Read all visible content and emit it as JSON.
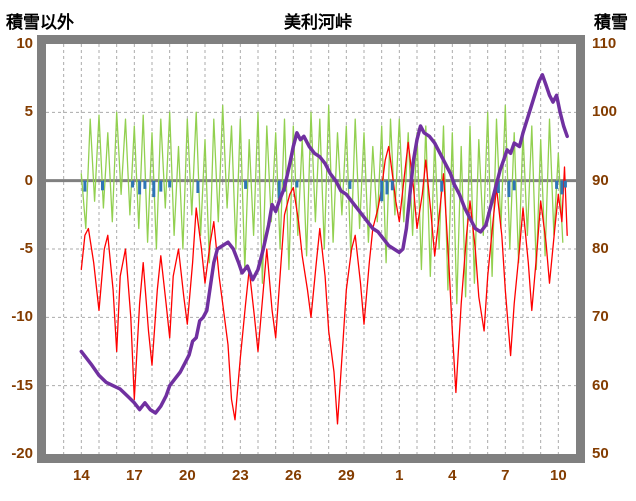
{
  "header": {
    "left_axis_title": "積雪以外",
    "chart_title": "美利河峠",
    "right_axis_title": "積雪"
  },
  "colors": {
    "background": "#FFFFFF",
    "frame": "#808080",
    "grid": "#ABABAB",
    "zero_line": "#808080",
    "axis_label": "#833C00",
    "title_text": "#000000"
  },
  "chart_data": {
    "type": "line",
    "title": "美利河峠",
    "grid": true,
    "legend": "none",
    "left_axis": {
      "title": "積雪以外",
      "range": [
        -20,
        10
      ],
      "ticks": [
        10,
        5,
        0,
        -5,
        -10,
        -15,
        -20
      ]
    },
    "right_axis": {
      "title": "積雪",
      "range": [
        50,
        110
      ],
      "ticks": [
        110,
        100,
        90,
        80,
        70,
        60,
        50
      ]
    },
    "x_axis": {
      "range": [
        0,
        30
      ],
      "gridline_every_day": true,
      "tick_positions": [
        2,
        5,
        8,
        11,
        14,
        17,
        20,
        23,
        26,
        29
      ],
      "tick_labels": [
        "14",
        "17",
        "20",
        "23",
        "26",
        "29",
        "1",
        "4",
        "7",
        "10"
      ]
    },
    "series": [
      {
        "name": "green-high-frequency-series",
        "style": "line",
        "axis": "left",
        "color": "#92D050",
        "width": 1.3,
        "x_start": 2,
        "x_step": 0.25,
        "values": [
          0.5,
          -3.5,
          4.5,
          -1.5,
          4.8,
          -2,
          3.5,
          -3,
          5,
          -1,
          4.5,
          -2.5,
          4,
          -3.5,
          4.8,
          -4.5,
          3.5,
          -5,
          4.5,
          -2,
          5,
          -4,
          2.5,
          -5,
          4.5,
          -2.5,
          5,
          -4,
          3,
          -6,
          4.5,
          -3,
          5.5,
          -2,
          4,
          -5,
          4.5,
          -6.5,
          3,
          -4,
          5,
          -7.5,
          4,
          -3,
          3.5,
          -5,
          4.5,
          -6.5,
          4,
          -4,
          3,
          -5.5,
          5,
          -3,
          4.5,
          -5,
          5.5,
          -4.5,
          3.5,
          -2.5,
          4,
          -5.5,
          4.5,
          -3.5,
          3.5,
          -4.5,
          2.5,
          -3,
          4,
          -6,
          4.5,
          -2.5,
          4.5,
          -3,
          3.5,
          -4,
          3.5,
          -6.5,
          4,
          -7,
          3,
          -5,
          4,
          -8,
          3.5,
          -9,
          2.5,
          -8.5,
          4,
          -7.5,
          3,
          -4,
          5,
          -7,
          4.5,
          -3.5,
          5.5,
          -5,
          3.5,
          -6,
          3.5,
          -4,
          4,
          -6.5,
          3,
          -5.5,
          4.5,
          -4,
          2,
          -4.5
        ]
      },
      {
        "name": "red-temperature-series",
        "style": "line",
        "axis": "left",
        "color": "#FF0000",
        "width": 1.3,
        "points": [
          [
            2,
            -6.5
          ],
          [
            2.2,
            -4
          ],
          [
            2.4,
            -3.5
          ],
          [
            2.7,
            -6
          ],
          [
            3,
            -9.5
          ],
          [
            3.3,
            -5
          ],
          [
            3.5,
            -4
          ],
          [
            3.8,
            -8
          ],
          [
            4,
            -12.5
          ],
          [
            4.2,
            -7
          ],
          [
            4.5,
            -5
          ],
          [
            4.8,
            -10
          ],
          [
            5,
            -16
          ],
          [
            5.3,
            -9
          ],
          [
            5.5,
            -6
          ],
          [
            5.8,
            -11
          ],
          [
            6,
            -13.5
          ],
          [
            6.3,
            -8
          ],
          [
            6.5,
            -5.5
          ],
          [
            6.8,
            -9
          ],
          [
            7,
            -11.5
          ],
          [
            7.2,
            -7
          ],
          [
            7.5,
            -5
          ],
          [
            7.8,
            -8.5
          ],
          [
            8,
            -10.5
          ],
          [
            8.3,
            -6
          ],
          [
            8.5,
            -2
          ],
          [
            8.8,
            -5
          ],
          [
            9,
            -7.5
          ],
          [
            9.3,
            -4.5
          ],
          [
            9.5,
            -3
          ],
          [
            9.8,
            -7
          ],
          [
            10,
            -9
          ],
          [
            10.3,
            -12
          ],
          [
            10.5,
            -16
          ],
          [
            10.7,
            -17.5
          ],
          [
            11,
            -13
          ],
          [
            11.3,
            -9
          ],
          [
            11.5,
            -6.5
          ],
          [
            11.8,
            -10
          ],
          [
            12,
            -12.5
          ],
          [
            12.3,
            -8
          ],
          [
            12.5,
            -5
          ],
          [
            12.8,
            -9.5
          ],
          [
            13,
            -11.5
          ],
          [
            13.3,
            -6
          ],
          [
            13.5,
            -2.5
          ],
          [
            13.8,
            -1
          ],
          [
            14,
            -0.5
          ],
          [
            14.3,
            -3
          ],
          [
            14.5,
            -5.5
          ],
          [
            14.8,
            -8
          ],
          [
            15,
            -10
          ],
          [
            15.3,
            -6
          ],
          [
            15.5,
            -3.5
          ],
          [
            15.8,
            -7
          ],
          [
            16,
            -11
          ],
          [
            16.3,
            -14
          ],
          [
            16.5,
            -17.8
          ],
          [
            16.8,
            -12
          ],
          [
            17,
            -8
          ],
          [
            17.3,
            -5
          ],
          [
            17.5,
            -4
          ],
          [
            17.8,
            -7.5
          ],
          [
            18,
            -10.5
          ],
          [
            18.3,
            -6
          ],
          [
            18.5,
            -3.5
          ],
          [
            18.8,
            -2
          ],
          [
            19,
            -0.5
          ],
          [
            19.2,
            1.5
          ],
          [
            19.4,
            2.5
          ],
          [
            19.6,
            0.5
          ],
          [
            19.8,
            -1.5
          ],
          [
            20,
            -3
          ],
          [
            20.3,
            0.5
          ],
          [
            20.5,
            2.8
          ],
          [
            20.8,
            -0.5
          ],
          [
            21,
            -3.5
          ],
          [
            21.3,
            -1
          ],
          [
            21.5,
            1.5
          ],
          [
            21.8,
            -2.5
          ],
          [
            22,
            -5.5
          ],
          [
            22.3,
            -2
          ],
          [
            22.5,
            0.5
          ],
          [
            22.8,
            -6
          ],
          [
            23,
            -11
          ],
          [
            23.2,
            -15.5
          ],
          [
            23.5,
            -9
          ],
          [
            23.8,
            -4
          ],
          [
            24,
            -1.5
          ],
          [
            24.3,
            -5
          ],
          [
            24.5,
            -8.5
          ],
          [
            24.8,
            -11
          ],
          [
            25,
            -7
          ],
          [
            25.3,
            -3
          ],
          [
            25.5,
            -0.5
          ],
          [
            25.8,
            -4
          ],
          [
            26,
            -8
          ],
          [
            26.3,
            -12.8
          ],
          [
            26.5,
            -9
          ],
          [
            26.8,
            -5
          ],
          [
            27,
            -2
          ],
          [
            27.3,
            -6
          ],
          [
            27.5,
            -9.5
          ],
          [
            27.8,
            -5
          ],
          [
            28,
            -1.5
          ],
          [
            28.3,
            -4.5
          ],
          [
            28.5,
            -7.5
          ],
          [
            28.8,
            -3.5
          ],
          [
            29,
            -1
          ],
          [
            29.2,
            -3
          ],
          [
            29.35,
            1
          ],
          [
            29.5,
            -4
          ]
        ]
      },
      {
        "name": "blue-bar-series",
        "style": "bar",
        "axis": "left",
        "color": "#2E75B6",
        "points": [
          [
            2.2,
            -0.8
          ],
          [
            3.2,
            -0.7
          ],
          [
            4.9,
            -0.5
          ],
          [
            5.3,
            -1
          ],
          [
            5.6,
            -0.6
          ],
          [
            6.1,
            -1.2
          ],
          [
            6.5,
            -0.8
          ],
          [
            7,
            -0.5
          ],
          [
            8.6,
            -0.9
          ],
          [
            11.3,
            -0.6
          ],
          [
            13.2,
            -1.3
          ],
          [
            13.5,
            -0.8
          ],
          [
            14.2,
            -0.5
          ],
          [
            17.2,
            -0.6
          ],
          [
            19,
            -1.5
          ],
          [
            19.3,
            -1
          ],
          [
            19.6,
            -0.7
          ],
          [
            22.4,
            -0.8
          ],
          [
            23.1,
            -0.5
          ],
          [
            25.6,
            -0.9
          ],
          [
            26.2,
            -1.2
          ],
          [
            26.5,
            -0.7
          ],
          [
            28.9,
            -0.6
          ],
          [
            29.2,
            -1
          ],
          [
            29.4,
            -0.5
          ]
        ]
      },
      {
        "name": "purple-snow-depth-series",
        "style": "line",
        "axis": "right",
        "color": "#7030A0",
        "width": 3.5,
        "points": [
          [
            2,
            65
          ],
          [
            2.3,
            64
          ],
          [
            2.6,
            63
          ],
          [
            3,
            61.5
          ],
          [
            3.4,
            60.5
          ],
          [
            3.8,
            60
          ],
          [
            4.2,
            59.5
          ],
          [
            4.6,
            58.5
          ],
          [
            5,
            57.5
          ],
          [
            5.3,
            56.5
          ],
          [
            5.6,
            57.5
          ],
          [
            5.9,
            56.5
          ],
          [
            6.2,
            56
          ],
          [
            6.5,
            57
          ],
          [
            6.8,
            58.5
          ],
          [
            7,
            60
          ],
          [
            7.3,
            61
          ],
          [
            7.6,
            62
          ],
          [
            7.9,
            63.5
          ],
          [
            8.1,
            64.5
          ],
          [
            8.3,
            66.5
          ],
          [
            8.5,
            67
          ],
          [
            8.7,
            69.5
          ],
          [
            8.9,
            70
          ],
          [
            9.1,
            71
          ],
          [
            9.3,
            74.5
          ],
          [
            9.5,
            78
          ],
          [
            9.7,
            80
          ],
          [
            10,
            80.5
          ],
          [
            10.3,
            81
          ],
          [
            10.6,
            80
          ],
          [
            10.9,
            78
          ],
          [
            11.1,
            76.5
          ],
          [
            11.4,
            77.5
          ],
          [
            11.7,
            75.5
          ],
          [
            12,
            77
          ],
          [
            12.3,
            80
          ],
          [
            12.6,
            83.5
          ],
          [
            12.8,
            86.5
          ],
          [
            13,
            85.5
          ],
          [
            13.2,
            87
          ],
          [
            13.5,
            89
          ],
          [
            13.8,
            92.5
          ],
          [
            14,
            95
          ],
          [
            14.2,
            97
          ],
          [
            14.4,
            96
          ],
          [
            14.6,
            96.5
          ],
          [
            14.9,
            95
          ],
          [
            15.2,
            94
          ],
          [
            15.5,
            93.5
          ],
          [
            15.8,
            92.5
          ],
          [
            16.1,
            91
          ],
          [
            16.4,
            90
          ],
          [
            16.7,
            88.5
          ],
          [
            17,
            88
          ],
          [
            17.3,
            87
          ],
          [
            17.6,
            86
          ],
          [
            17.9,
            85
          ],
          [
            18.2,
            84
          ],
          [
            18.5,
            83
          ],
          [
            18.8,
            82.5
          ],
          [
            19.1,
            81.5
          ],
          [
            19.4,
            80.5
          ],
          [
            19.7,
            80
          ],
          [
            20,
            79.5
          ],
          [
            20.2,
            80
          ],
          [
            20.4,
            83
          ],
          [
            20.6,
            88
          ],
          [
            20.8,
            93
          ],
          [
            21,
            96
          ],
          [
            21.2,
            98
          ],
          [
            21.4,
            97
          ],
          [
            21.7,
            96.5
          ],
          [
            22,
            95.5
          ],
          [
            22.3,
            94
          ],
          [
            22.6,
            92.5
          ],
          [
            22.9,
            91
          ],
          [
            23.1,
            89.5
          ],
          [
            23.4,
            88
          ],
          [
            23.7,
            86
          ],
          [
            24,
            84.5
          ],
          [
            24.3,
            83
          ],
          [
            24.6,
            82.5
          ],
          [
            24.9,
            83.5
          ],
          [
            25.1,
            85.5
          ],
          [
            25.4,
            88.5
          ],
          [
            25.7,
            91.5
          ],
          [
            25.9,
            93
          ],
          [
            26.1,
            94.5
          ],
          [
            26.3,
            94
          ],
          [
            26.5,
            95.5
          ],
          [
            26.8,
            95
          ],
          [
            27,
            97
          ],
          [
            27.3,
            99.5
          ],
          [
            27.6,
            102
          ],
          [
            27.9,
            104.5
          ],
          [
            28.1,
            105.5
          ],
          [
            28.3,
            104
          ],
          [
            28.5,
            102.5
          ],
          [
            28.7,
            101.5
          ],
          [
            28.9,
            102.5
          ],
          [
            29.1,
            100
          ],
          [
            29.3,
            98
          ],
          [
            29.5,
            96.5
          ]
        ]
      }
    ]
  }
}
